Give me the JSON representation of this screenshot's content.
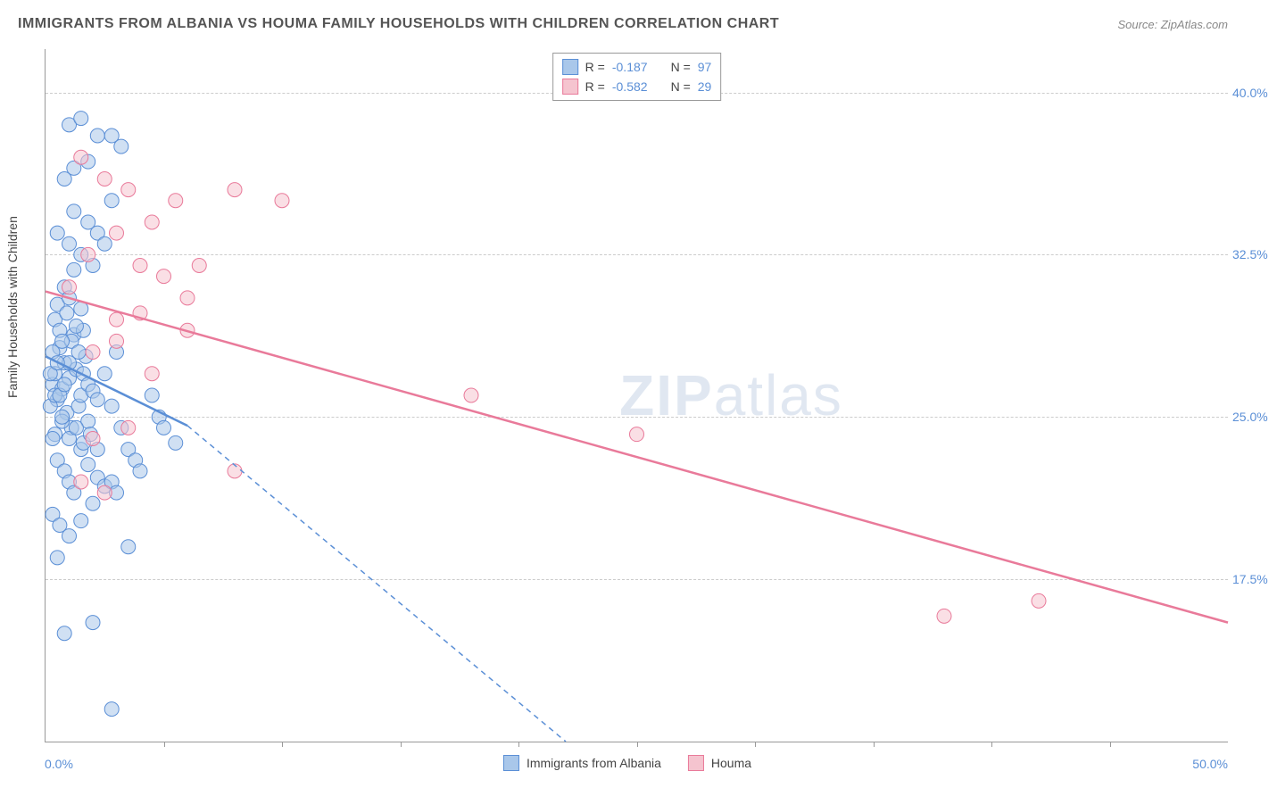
{
  "title": "IMMIGRANTS FROM ALBANIA VS HOUMA FAMILY HOUSEHOLDS WITH CHILDREN CORRELATION CHART",
  "source": "Source: ZipAtlas.com",
  "watermark_bold": "ZIP",
  "watermark_light": "atlas",
  "ylabel": "Family Households with Children",
  "chart": {
    "type": "scatter",
    "xlim": [
      0,
      50
    ],
    "ylim": [
      10,
      42
    ],
    "x_min_label": "0.0%",
    "x_max_label": "50.0%",
    "y_ticks": [
      17.5,
      25.0,
      32.5,
      40.0
    ],
    "y_tick_labels": [
      "17.5%",
      "25.0%",
      "32.5%",
      "40.0%"
    ],
    "x_tick_positions": [
      5,
      10,
      15,
      20,
      25,
      30,
      35,
      40,
      45
    ],
    "grid_color": "#cccccc",
    "background_color": "#ffffff",
    "marker_radius": 8,
    "marker_opacity": 0.55,
    "series": [
      {
        "name": "Immigrants from Albania",
        "fill_color": "#a9c7ea",
        "stroke_color": "#5b8fd6",
        "R": "-0.187",
        "N": "97",
        "trend_solid": {
          "x1": 0,
          "y1": 27.8,
          "x2": 6,
          "y2": 24.6
        },
        "trend_dash": {
          "x1": 6,
          "y1": 24.6,
          "x2": 22,
          "y2": 10
        },
        "trend_width": 2.5,
        "points": [
          [
            0.3,
            26.5
          ],
          [
            0.4,
            27.0
          ],
          [
            0.5,
            25.8
          ],
          [
            0.6,
            28.2
          ],
          [
            0.7,
            26.3
          ],
          [
            0.8,
            27.5
          ],
          [
            0.9,
            25.2
          ],
          [
            1.0,
            26.8
          ],
          [
            1.1,
            24.5
          ],
          [
            1.2,
            28.8
          ],
          [
            1.3,
            27.2
          ],
          [
            1.4,
            25.5
          ],
          [
            1.5,
            26.0
          ],
          [
            1.6,
            29.0
          ],
          [
            1.7,
            27.8
          ],
          [
            1.8,
            24.8
          ],
          [
            0.5,
            30.2
          ],
          [
            0.8,
            31.0
          ],
          [
            1.0,
            30.5
          ],
          [
            1.2,
            31.8
          ],
          [
            1.5,
            30.0
          ],
          [
            0.4,
            29.5
          ],
          [
            0.6,
            29.0
          ],
          [
            0.9,
            29.8
          ],
          [
            1.1,
            28.5
          ],
          [
            1.3,
            29.2
          ],
          [
            0.3,
            28.0
          ],
          [
            0.7,
            28.5
          ],
          [
            1.0,
            27.5
          ],
          [
            1.4,
            28.0
          ],
          [
            1.6,
            27.0
          ],
          [
            1.8,
            26.5
          ],
          [
            2.0,
            26.2
          ],
          [
            2.2,
            25.8
          ],
          [
            2.5,
            27.0
          ],
          [
            2.8,
            25.5
          ],
          [
            3.0,
            28.0
          ],
          [
            3.2,
            24.5
          ],
          [
            3.5,
            23.5
          ],
          [
            3.8,
            23.0
          ],
          [
            4.0,
            22.5
          ],
          [
            0.5,
            23.0
          ],
          [
            0.8,
            22.5
          ],
          [
            1.0,
            22.0
          ],
          [
            1.2,
            21.5
          ],
          [
            1.5,
            23.5
          ],
          [
            1.8,
            22.8
          ],
          [
            2.0,
            21.0
          ],
          [
            2.2,
            22.2
          ],
          [
            2.5,
            21.8
          ],
          [
            2.8,
            22.0
          ],
          [
            3.0,
            21.5
          ],
          [
            0.4,
            24.2
          ],
          [
            0.7,
            24.8
          ],
          [
            1.0,
            24.0
          ],
          [
            1.3,
            24.5
          ],
          [
            1.6,
            23.8
          ],
          [
            1.9,
            24.2
          ],
          [
            2.2,
            23.5
          ],
          [
            0.3,
            20.5
          ],
          [
            0.6,
            20.0
          ],
          [
            1.0,
            19.5
          ],
          [
            1.5,
            20.2
          ],
          [
            3.5,
            19.0
          ],
          [
            0.5,
            18.5
          ],
          [
            2.0,
            15.5
          ],
          [
            0.8,
            15.0
          ],
          [
            0.5,
            33.5
          ],
          [
            1.0,
            33.0
          ],
          [
            1.5,
            32.5
          ],
          [
            2.0,
            32.0
          ],
          [
            1.2,
            34.5
          ],
          [
            1.8,
            34.0
          ],
          [
            2.2,
            33.5
          ],
          [
            2.5,
            33.0
          ],
          [
            2.8,
            35.0
          ],
          [
            0.8,
            36.0
          ],
          [
            1.2,
            36.5
          ],
          [
            1.8,
            36.8
          ],
          [
            2.2,
            38.0
          ],
          [
            2.8,
            38.0
          ],
          [
            3.2,
            37.5
          ],
          [
            1.0,
            38.5
          ],
          [
            1.5,
            38.8
          ],
          [
            2.8,
            11.5
          ],
          [
            4.5,
            26.0
          ],
          [
            4.8,
            25.0
          ],
          [
            5.0,
            24.5
          ],
          [
            5.5,
            23.8
          ],
          [
            0.2,
            27.0
          ],
          [
            0.2,
            25.5
          ],
          [
            0.3,
            24.0
          ],
          [
            0.4,
            26.0
          ],
          [
            0.5,
            27.5
          ],
          [
            0.6,
            26.0
          ],
          [
            0.7,
            25.0
          ],
          [
            0.8,
            26.5
          ]
        ]
      },
      {
        "name": "Houma",
        "fill_color": "#f5c4cf",
        "stroke_color": "#e97a9a",
        "R": "-0.582",
        "N": "29",
        "trend_solid": {
          "x1": 0,
          "y1": 30.8,
          "x2": 50,
          "y2": 15.5
        },
        "trend_dash": null,
        "trend_width": 2.5,
        "points": [
          [
            1.5,
            37.0
          ],
          [
            2.5,
            36.0
          ],
          [
            3.5,
            35.5
          ],
          [
            4.5,
            34.0
          ],
          [
            5.5,
            35.0
          ],
          [
            4.0,
            32.0
          ],
          [
            5.0,
            31.5
          ],
          [
            6.0,
            30.5
          ],
          [
            3.0,
            29.5
          ],
          [
            4.0,
            29.8
          ],
          [
            6.5,
            32.0
          ],
          [
            8.0,
            35.5
          ],
          [
            10.0,
            35.0
          ],
          [
            2.0,
            28.0
          ],
          [
            3.0,
            28.5
          ],
          [
            4.5,
            27.0
          ],
          [
            6.0,
            29.0
          ],
          [
            8.0,
            22.5
          ],
          [
            18.0,
            26.0
          ],
          [
            25.0,
            24.2
          ],
          [
            2.5,
            21.5
          ],
          [
            1.5,
            22.0
          ],
          [
            2.0,
            24.0
          ],
          [
            3.5,
            24.5
          ],
          [
            38.0,
            15.8
          ],
          [
            42.0,
            16.5
          ],
          [
            1.0,
            31.0
          ],
          [
            1.8,
            32.5
          ],
          [
            3.0,
            33.5
          ]
        ]
      }
    ]
  },
  "legend_top": {
    "r_label": "R =",
    "n_label": "N ="
  },
  "legend_bottom": [
    {
      "label": "Immigrants from Albania",
      "fill": "#a9c7ea",
      "stroke": "#5b8fd6"
    },
    {
      "label": "Houma",
      "fill": "#f5c4cf",
      "stroke": "#e97a9a"
    }
  ]
}
